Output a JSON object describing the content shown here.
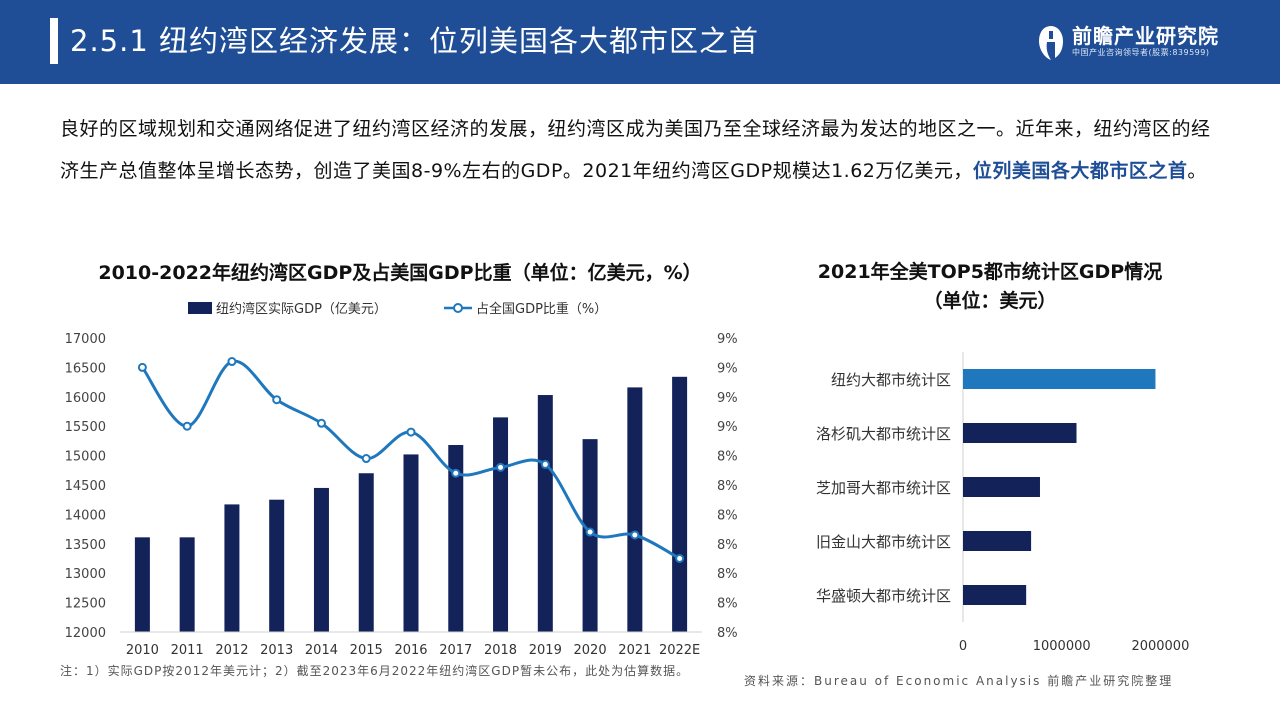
{
  "header": {
    "title": "2.5.1 纽约湾区经济发展：位列美国各大都市区之首",
    "logo_name": "前瞻产业研究院",
    "logo_sub": "中国产业咨询领导者(股票:839599)"
  },
  "intro": {
    "text_before": "良好的区域规划和交通网络促进了纽约湾区经济的发展，纽约湾区成为美国乃至全球经济最为发达的地区之一。近年来，纽约湾区的经济生产总值整体呈增长态势，创造了美国8-9%左右的GDP。2021年纽约湾区GDP规模达1.62万亿美元，",
    "highlight": "位列美国各大都市区之首",
    "text_after": "。"
  },
  "left_chart_title": "2010-2022年纽约湾区GDP及占美国GDP比重（单位：亿美元，%）",
  "right_chart_title_line1": "2021年全美TOP5都市统计区GDP情况",
  "right_chart_title_line2": "（单位：美元）",
  "note": "注：1）实际GDP按2012年美元计；2）截至2023年6月2022年纽约湾区GDP暂未公布，此处为估算数据。",
  "source": "资料来源：Bureau of Economic Analysis 前瞻产业研究院整理",
  "colors": {
    "header": "#1f4e96",
    "bar": "#13235a",
    "line": "#1f78bd",
    "highlight_bar": "#1f78bd"
  },
  "chart_data": [
    {
      "type": "bar+line",
      "title": "2010-2022年纽约湾区GDP及占美国GDP比重（单位：亿美元，%）",
      "categories": [
        "2010",
        "2011",
        "2012",
        "2013",
        "2014",
        "2015",
        "2016",
        "2017",
        "2018",
        "2019",
        "2020",
        "2021",
        "2022E"
      ],
      "series": [
        {
          "name": "纽约湾区实际GDP（亿美元）",
          "type": "bar",
          "axis": "left",
          "values": [
            13610,
            13610,
            14170,
            14250,
            14450,
            14700,
            15020,
            15180,
            15650,
            16030,
            15280,
            16160,
            16340
          ]
        },
        {
          "name": "占全国GDP比重（%）",
          "type": "line",
          "axis": "right",
          "values": [
            8.9,
            8.7,
            8.92,
            8.79,
            8.71,
            8.59,
            8.68,
            8.54,
            8.56,
            8.57,
            8.34,
            8.33,
            8.25
          ]
        }
      ],
      "y_left": {
        "min": 12000,
        "max": 17000,
        "step": 500,
        "ticks": [
          "12000",
          "12500",
          "13000",
          "13500",
          "14000",
          "14500",
          "15000",
          "15500",
          "16000",
          "16500",
          "17000"
        ]
      },
      "y_right": {
        "min": 8.0,
        "max": 9.0,
        "ticks": [
          "8%",
          "8%",
          "8%",
          "8%",
          "8%",
          "8%",
          "8%",
          "9%",
          "9%",
          "9%",
          "9%"
        ]
      },
      "legend_position": "top",
      "grid": false
    },
    {
      "type": "bar",
      "orientation": "horizontal",
      "title": "2021年全美TOP5都市统计区GDP情况（单位：美元）",
      "categories": [
        "纽约大都市统计区",
        "洛杉矶大都市统计区",
        "芝加哥大都市统计区",
        "旧金山大都市统计区",
        "华盛顿大都市统计区"
      ],
      "values": [
        1950000,
        1150000,
        780000,
        690000,
        640000
      ],
      "x_ticks": [
        "0",
        "1000000",
        "2000000"
      ],
      "xlim": [
        0,
        2300000
      ],
      "grid": false
    }
  ]
}
